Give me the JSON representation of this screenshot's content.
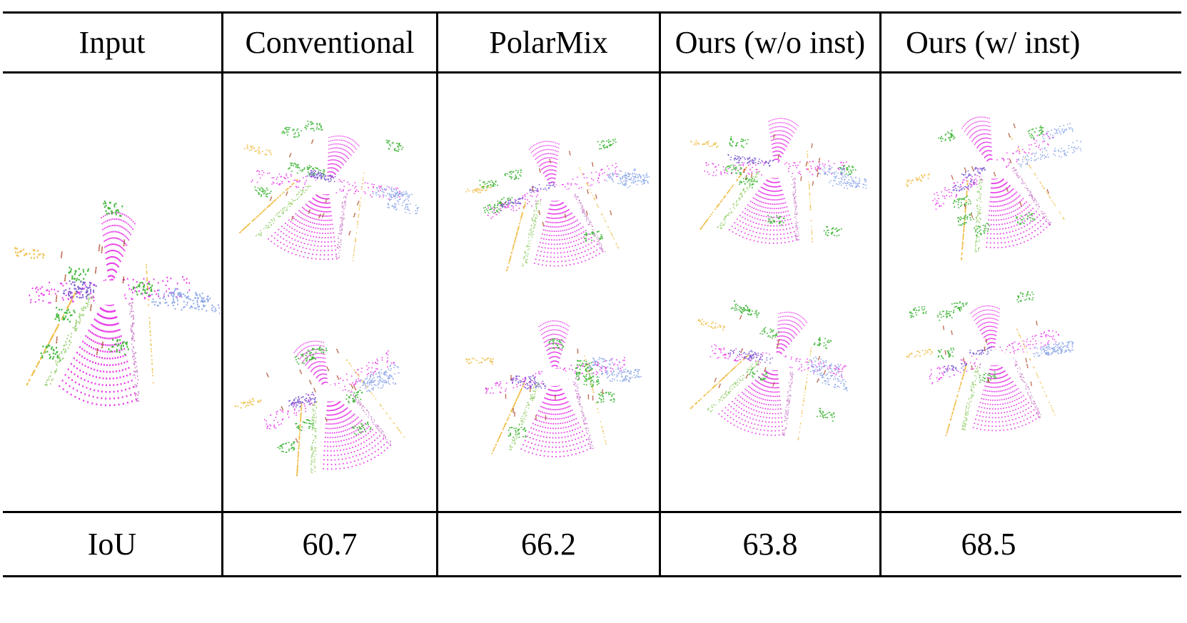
{
  "table": {
    "headers": [
      "Input",
      "Conventional",
      "PolarMix",
      "Ours (w/o inst)",
      "Ours (w/ inst)"
    ],
    "row_label": "IoU",
    "iou_values": [
      "60.7",
      "66.2",
      "63.8",
      "68.5"
    ]
  },
  "colors": {
    "road": "#e83ee8",
    "sidewalk": "#c87ac8",
    "vegetation": "#48b840",
    "building": "#8ea8e8",
    "fence": "#f0c050",
    "car": "#7a5ad0",
    "terrain": "#98d070",
    "trunk": "#b05030"
  }
}
